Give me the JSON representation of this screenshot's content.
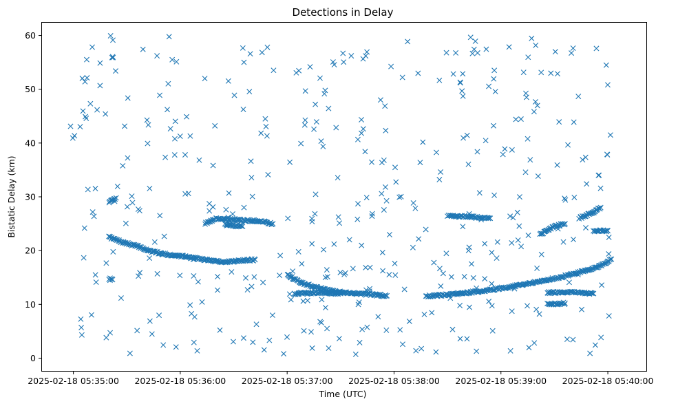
{
  "chart_data": {
    "type": "scatter",
    "title": "Detections in Delay",
    "xlabel": "Time (UTC)",
    "ylabel": "Bistatic Delay (km)",
    "xlim_seconds": [
      -18,
      322
    ],
    "ylim": [
      -2.5,
      62.5
    ],
    "marker": "x",
    "color": "#1f77b4",
    "x_ticks": [
      {
        "seconds": 0,
        "label": "2025-02-18 05:35:00"
      },
      {
        "seconds": 60,
        "label": "2025-02-18 05:36:00"
      },
      {
        "seconds": 120,
        "label": "2025-02-18 05:37:00"
      },
      {
        "seconds": 180,
        "label": "2025-02-18 05:38:00"
      },
      {
        "seconds": 240,
        "label": "2025-02-18 05:39:00"
      },
      {
        "seconds": 300,
        "label": "2025-02-18 05:40:00"
      }
    ],
    "y_ticks": [
      0,
      10,
      20,
      30,
      40,
      50,
      60
    ],
    "tracks": [
      {
        "name": "track-a",
        "points": [
          [
            20,
            22.5
          ],
          [
            28,
            21.5
          ],
          [
            36,
            20.8
          ],
          [
            44,
            19.8
          ],
          [
            52,
            19.3
          ],
          [
            60,
            19.0
          ],
          [
            68,
            18.6
          ],
          [
            76,
            18.2
          ],
          [
            84,
            17.9
          ],
          [
            90,
            18.0
          ],
          [
            96,
            18.2
          ],
          [
            102,
            18.3
          ]
        ]
      },
      {
        "name": "track-b",
        "points": [
          [
            74,
            25.0
          ],
          [
            80,
            26.0
          ],
          [
            88,
            25.8
          ],
          [
            96,
            25.6
          ],
          [
            104,
            25.5
          ],
          [
            112,
            25.0
          ]
        ]
      },
      {
        "name": "track-c",
        "points": [
          [
            85,
            24.8
          ],
          [
            95,
            24.5
          ]
        ]
      },
      {
        "name": "track-d",
        "points": [
          [
            120,
            15.5
          ],
          [
            128,
            14.0
          ],
          [
            136,
            13.2
          ],
          [
            144,
            12.6
          ],
          [
            152,
            12.2
          ],
          [
            160,
            12.0
          ],
          [
            168,
            11.8
          ],
          [
            176,
            11.6
          ]
        ]
      },
      {
        "name": "track-e",
        "points": [
          [
            124,
            12.0
          ],
          [
            140,
            12.2
          ],
          [
            150,
            12.0
          ]
        ]
      },
      {
        "name": "track-f",
        "points": [
          [
            198,
            11.5
          ],
          [
            210,
            11.8
          ],
          [
            222,
            12.2
          ],
          [
            234,
            12.7
          ],
          [
            246,
            13.3
          ],
          [
            258,
            14.0
          ],
          [
            270,
            14.8
          ],
          [
            280,
            15.6
          ],
          [
            290,
            16.5
          ],
          [
            296,
            17.2
          ],
          [
            302,
            18.4
          ]
        ]
      },
      {
        "name": "track-g",
        "points": [
          [
            266,
            12.2
          ],
          [
            280,
            12.3
          ],
          [
            292,
            12.0
          ]
        ]
      },
      {
        "name": "track-h",
        "points": [
          [
            262,
            23.0
          ],
          [
            270,
            24.5
          ],
          [
            276,
            25.0
          ]
        ]
      },
      {
        "name": "track-i",
        "points": [
          [
            210,
            26.5
          ],
          [
            222,
            26.3
          ],
          [
            234,
            26.0
          ]
        ]
      },
      {
        "name": "track-j",
        "points": [
          [
            266,
            10.0
          ],
          [
            276,
            10.2
          ]
        ]
      },
      {
        "name": "track-k",
        "points": [
          [
            284,
            26.0
          ],
          [
            292,
            27.2
          ],
          [
            296,
            28.0
          ]
        ]
      },
      {
        "name": "track-l",
        "points": [
          [
            20,
            14.5
          ],
          [
            22,
            14.6
          ]
        ]
      },
      {
        "name": "track-m",
        "points": [
          [
            20,
            29.0
          ],
          [
            24,
            29.8
          ]
        ]
      },
      {
        "name": "track-n",
        "points": [
          [
            292,
            23.7
          ],
          [
            300,
            23.7
          ]
        ]
      }
    ],
    "clutter": {
      "count": 420,
      "x_range": [
        -2,
        302
      ],
      "y_range": [
        0.5,
        60
      ],
      "seed": 7
    }
  }
}
